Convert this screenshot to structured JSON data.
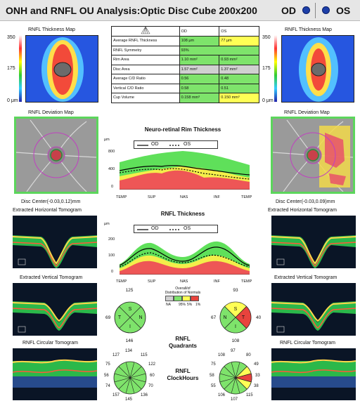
{
  "header": {
    "title": "ONH and RNFL OU Analysis:Optic Disc Cube 200x200",
    "od_label": "OD",
    "os_label": "OS"
  },
  "colors": {
    "od_dot": "#1d3fa8",
    "green": "#7ee36b",
    "yellow": "#ffff55",
    "red": "#e8433d",
    "gray": "#d0d0d0"
  },
  "maps": {
    "thickness_title": "RNFL Thickness Map",
    "deviation_title": "RNFL Deviation Map",
    "scale_top": "350",
    "scale_mid": "175",
    "scale_bottom": "0 μm",
    "disc_center_od": "Disc Center(-0.03,0.12)mm",
    "disc_center_os": "Disc Center(-0.03,0.09)mm"
  },
  "tomograms": {
    "horizontal": "Extracted Horizontal Tomogram",
    "vertical": "Extracted Vertical Tomogram",
    "circular": "RNFL Circular Tomogram"
  },
  "table": {
    "icon": "triangle-icon",
    "col_od": "OD",
    "col_os": "OS",
    "rows": [
      {
        "label": "Average RNFL Thickness",
        "od": "108 μm",
        "os": "77 μm"
      },
      {
        "label": "RNFL Symmetry",
        "od": "93%",
        "os": ""
      },
      {
        "label": "Rim Area",
        "od": "1.10 mm²",
        "os": "0.93 mm²"
      },
      {
        "label": "Disc Area",
        "od": "1.57 mm²",
        "os": "1.37 mm²"
      },
      {
        "label": "Average C/D Ratio",
        "od": "0.56",
        "os": "0.48"
      },
      {
        "label": "Vertical C/D Ratio",
        "od": "0.58",
        "os": "0.51"
      },
      {
        "label": "Cup Volume",
        "od": "0.158 mm³",
        "os": "0.150 mm³"
      }
    ]
  },
  "rim_chart": {
    "title": "Neuro-retinal Rim Thickness",
    "unit": "μm",
    "legend_od": "OD",
    "legend_os": "OS",
    "yticks": [
      "800",
      "400",
      "0"
    ],
    "xticks": [
      "TEMP",
      "SUP",
      "NAS",
      "INF",
      "TEMP"
    ]
  },
  "rnfl_chart": {
    "title": "RNFL Thickness",
    "unit": "μm",
    "legend_od": "OD",
    "legend_os": "OS",
    "yticks": [
      "200",
      "100",
      "0"
    ],
    "xticks": [
      "TEMP",
      "SUP",
      "NAS",
      "INF",
      "TEMP"
    ]
  },
  "distribution": {
    "title_1": "Distribution of Normals",
    "label": "Overall/of",
    "na": "NA",
    "p95": "95%",
    "p5": "5%",
    "p1": "1%"
  },
  "quadrants": {
    "title_1": "RNFL",
    "title_2": "Quadrants",
    "od": {
      "s": "125",
      "n": "85",
      "i": "146",
      "t": "69"
    },
    "os": {
      "s": "93",
      "n": "40",
      "i": "108",
      "t": "67"
    },
    "letters": {
      "s": "S",
      "n": "N",
      "i": "I",
      "t": "T"
    }
  },
  "clock": {
    "title_1": "RNFL",
    "title_2": "ClockHours",
    "od": {
      "c12": "134",
      "c1": "115",
      "c2": "122",
      "c3": "60",
      "c4": "70",
      "c5": "136",
      "c6": "145",
      "c7": "157",
      "c8": "74",
      "c9": "56",
      "c10": "75",
      "c11": "127"
    },
    "os": {
      "c12": "97",
      "c1": "80",
      "c2": "49",
      "c3": "33",
      "c4": "38",
      "c5": "115",
      "c6": "107",
      "c7": "106",
      "c8": "55",
      "c9": "58",
      "c10": "75",
      "c11": "108"
    }
  }
}
